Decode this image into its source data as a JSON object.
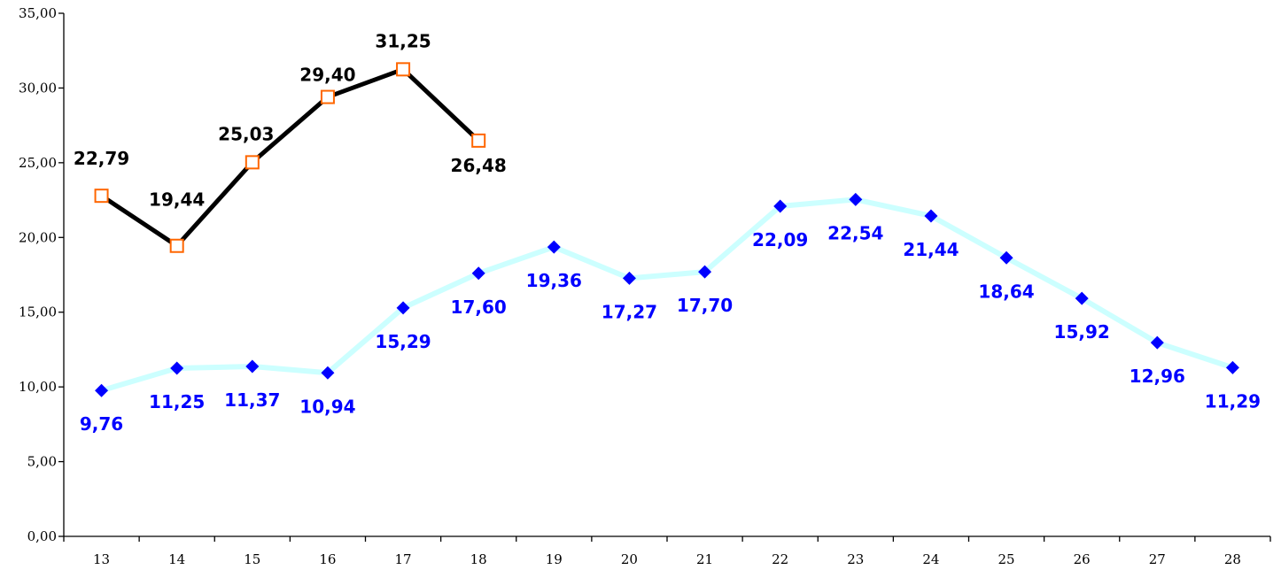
{
  "chart_data": {
    "type": "line",
    "title": "",
    "xlabel": "",
    "ylabel": "",
    "x": [
      13,
      14,
      15,
      16,
      17,
      18,
      19,
      20,
      21,
      22,
      23,
      24,
      25,
      26,
      27,
      28
    ],
    "x_tick_labels": [
      "13",
      "14",
      "15",
      "16",
      "17",
      "18",
      "19",
      "20",
      "21",
      "22",
      "23",
      "24",
      "25",
      "26",
      "27",
      "28"
    ],
    "ylim": [
      0,
      35
    ],
    "y_tick_labels": [
      "0,00",
      "5,00",
      "10,00",
      "15,00",
      "20,00",
      "25,00",
      "30,00",
      "35,00"
    ],
    "grid": false,
    "legend": "none",
    "series": [
      {
        "line_color": "#CCFFFF",
        "marker": "diamond",
        "marker_color": "#0000FF",
        "label_color": "#0000FF",
        "label_position": "below",
        "x": [
          13,
          14,
          15,
          16,
          17,
          18,
          19,
          20,
          21,
          22,
          23,
          24,
          25,
          26,
          27,
          28
        ],
        "values": [
          9.76,
          11.25,
          11.37,
          10.94,
          15.29,
          17.6,
          19.36,
          17.27,
          17.7,
          22.09,
          22.54,
          21.44,
          18.64,
          15.92,
          12.96,
          11.29
        ],
        "labels": [
          "9,76",
          "11,25",
          "11,37",
          "10,94",
          "15,29",
          "17,60",
          "19,36",
          "17,27",
          "17,70",
          "22,09",
          "22,54",
          "21,44",
          "18,64",
          "15,92",
          "12,96",
          "11,29"
        ]
      },
      {
        "line_color": "#000000",
        "marker": "square-open",
        "marker_color": "#FF6600",
        "label_color": "#000000",
        "label_position": "mixed",
        "x": [
          13,
          14,
          15,
          16,
          17,
          18
        ],
        "values": [
          22.79,
          19.44,
          25.03,
          29.4,
          31.25,
          26.48
        ],
        "labels": [
          "22,79",
          "19,44",
          "25,03",
          "29,40",
          "31,25",
          "26,48"
        ]
      }
    ]
  }
}
